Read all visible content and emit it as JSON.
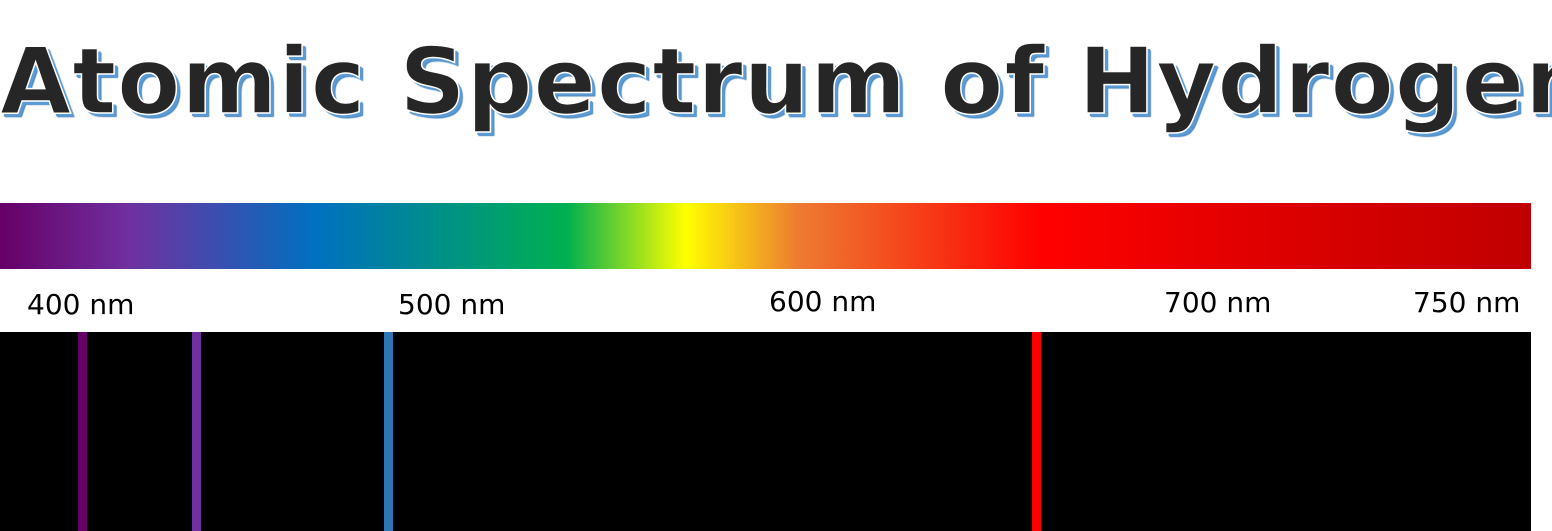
{
  "title": "Atomic Spectrum of Hydrogen",
  "colors": {
    "title_text": "#262626",
    "title_shadow": "#5b9bd5",
    "emission_background": "#000000"
  },
  "spectrum": {
    "ticks": [
      {
        "label": "400 nm"
      },
      {
        "label": "500 nm"
      },
      {
        "label": "600 nm"
      },
      {
        "label": "700 nm"
      },
      {
        "label": "750 nm"
      }
    ]
  },
  "emission_lines": [
    {
      "name": "violet-deep",
      "color": "#660066"
    },
    {
      "name": "violet",
      "color": "#7030a0"
    },
    {
      "name": "blue",
      "color": "#2e75b6"
    },
    {
      "name": "red",
      "color": "#ff0000"
    }
  ]
}
